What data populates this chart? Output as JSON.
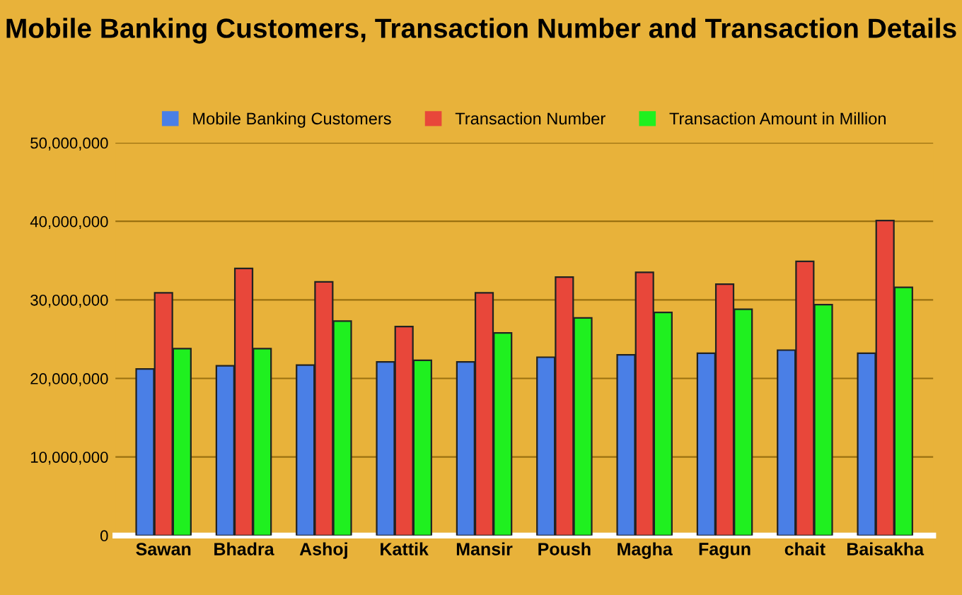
{
  "chart_data": {
    "type": "bar",
    "title": "Mobile Banking Customers, Transaction Number and Transaction Details",
    "categories": [
      "Sawan",
      "Bhadra",
      "Ashoj",
      "Kattik",
      "Mansir",
      "Poush",
      "Magha",
      "Fagun",
      "chait",
      "Baisakha"
    ],
    "series": [
      {
        "name": "Mobile Banking Customers",
        "color": "#4a7fe6",
        "values": [
          21200000,
          21600000,
          21700000,
          22100000,
          22100000,
          22700000,
          23000000,
          23200000,
          23600000,
          23200000
        ]
      },
      {
        "name": "Transaction Number",
        "color": "#e8473a",
        "values": [
          30900000,
          34000000,
          32300000,
          26600000,
          30900000,
          32900000,
          33500000,
          32000000,
          34900000,
          40100000
        ]
      },
      {
        "name": "Transaction Amount in Million",
        "color": "#1ff01f",
        "values": [
          23800000,
          23800000,
          27300000,
          22300000,
          25800000,
          27700000,
          28400000,
          28800000,
          29400000,
          31600000
        ]
      }
    ],
    "ylim": [
      0,
      50000000
    ],
    "yticks": [
      0,
      {
        "value": 10000000,
        "label": "10,000,000"
      },
      {
        "value": 20000000,
        "label": "20,000,000"
      },
      {
        "value": 30000000,
        "label": "30,000,000"
      },
      {
        "value": 40000000,
        "label": "40,000,000"
      },
      {
        "value": 50000000,
        "label": "50,000,000"
      }
    ],
    "grid": "y",
    "legend": "top"
  }
}
